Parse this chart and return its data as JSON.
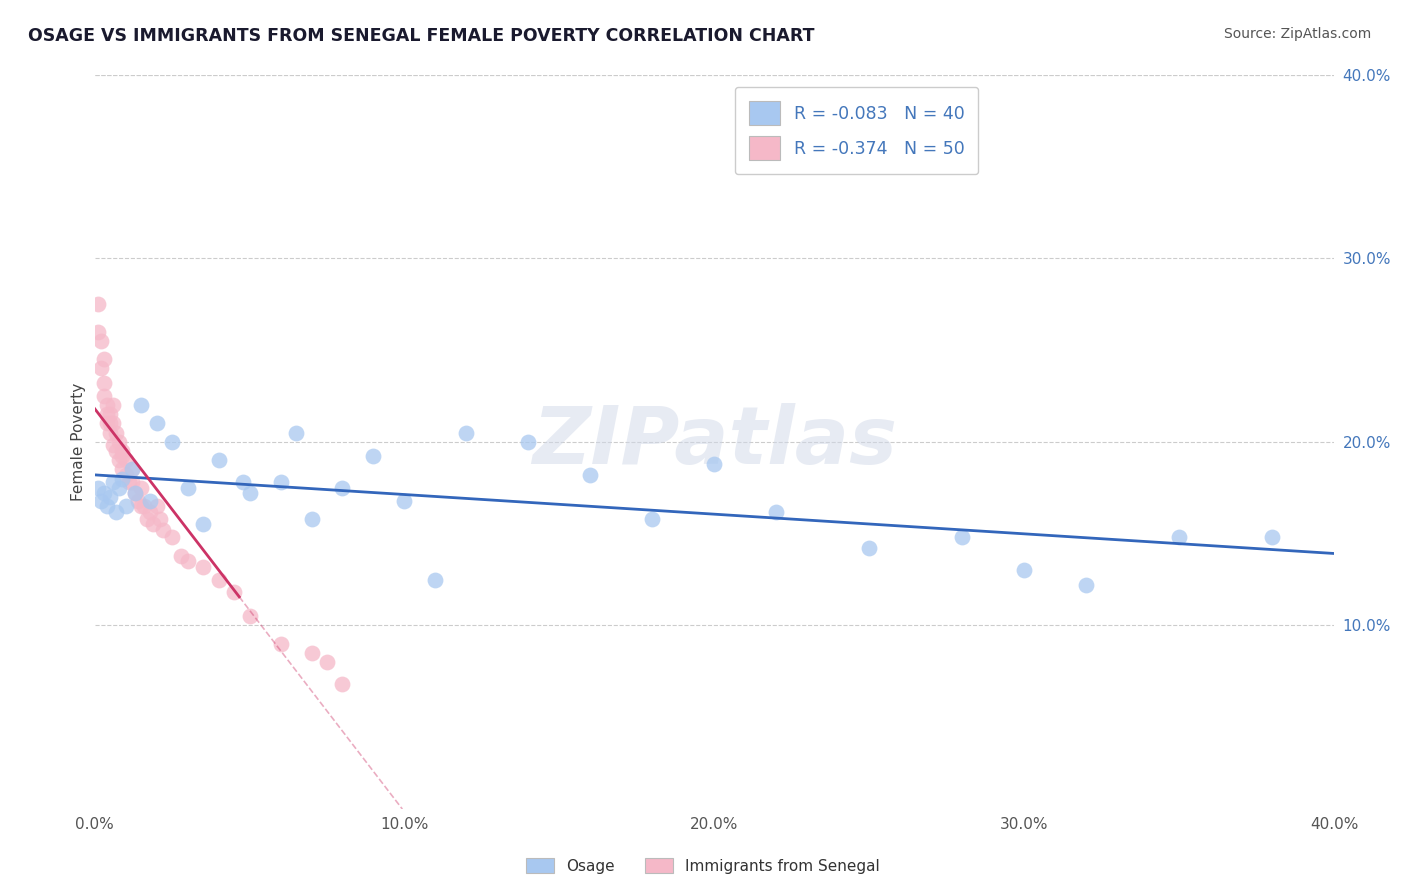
{
  "title": "OSAGE VS IMMIGRANTS FROM SENEGAL FEMALE POVERTY CORRELATION CHART",
  "source": "Source: ZipAtlas.com",
  "ylabel": "Female Poverty",
  "xlim": [
    0.0,
    0.4
  ],
  "ylim": [
    0.0,
    0.4
  ],
  "xtick_vals": [
    0.0,
    0.1,
    0.2,
    0.3,
    0.4
  ],
  "ytick_vals_right": [
    0.1,
    0.2,
    0.3,
    0.4
  ],
  "legend_labels": [
    "Osage",
    "Immigrants from Senegal"
  ],
  "osage_color": "#a8c8f0",
  "senegal_color": "#f5b8c8",
  "osage_line_color": "#3366bb",
  "senegal_line_color": "#cc3366",
  "R_osage": -0.083,
  "N_osage": 40,
  "R_senegal": -0.374,
  "N_senegal": 50,
  "watermark": "ZIPatlas",
  "title_color": "#1a1a2e",
  "legend_text_color": "#4477bb",
  "osage_x": [
    0.001,
    0.002,
    0.003,
    0.004,
    0.005,
    0.006,
    0.007,
    0.008,
    0.009,
    0.01,
    0.012,
    0.013,
    0.015,
    0.018,
    0.02,
    0.025,
    0.03,
    0.035,
    0.04,
    0.05,
    0.06,
    0.07,
    0.08,
    0.09,
    0.1,
    0.12,
    0.14,
    0.16,
    0.18,
    0.2,
    0.22,
    0.25,
    0.28,
    0.3,
    0.32,
    0.35,
    0.38,
    0.048,
    0.065,
    0.11
  ],
  "osage_y": [
    0.175,
    0.168,
    0.172,
    0.165,
    0.17,
    0.178,
    0.162,
    0.175,
    0.18,
    0.165,
    0.185,
    0.172,
    0.22,
    0.168,
    0.21,
    0.2,
    0.175,
    0.155,
    0.19,
    0.172,
    0.178,
    0.158,
    0.175,
    0.192,
    0.168,
    0.205,
    0.2,
    0.182,
    0.158,
    0.188,
    0.162,
    0.142,
    0.148,
    0.13,
    0.122,
    0.148,
    0.148,
    0.178,
    0.205,
    0.125
  ],
  "senegal_x": [
    0.001,
    0.001,
    0.002,
    0.002,
    0.003,
    0.003,
    0.004,
    0.004,
    0.004,
    0.005,
    0.005,
    0.005,
    0.006,
    0.006,
    0.007,
    0.007,
    0.008,
    0.008,
    0.009,
    0.009,
    0.01,
    0.01,
    0.011,
    0.012,
    0.012,
    0.013,
    0.014,
    0.015,
    0.015,
    0.016,
    0.017,
    0.018,
    0.019,
    0.02,
    0.021,
    0.022,
    0.025,
    0.028,
    0.03,
    0.035,
    0.04,
    0.045,
    0.05,
    0.06,
    0.07,
    0.075,
    0.08,
    0.003,
    0.006,
    0.009
  ],
  "senegal_y": [
    0.275,
    0.26,
    0.255,
    0.24,
    0.232,
    0.225,
    0.215,
    0.21,
    0.22,
    0.21,
    0.205,
    0.215,
    0.198,
    0.21,
    0.195,
    0.205,
    0.19,
    0.2,
    0.185,
    0.192,
    0.182,
    0.19,
    0.178,
    0.178,
    0.185,
    0.172,
    0.168,
    0.175,
    0.165,
    0.165,
    0.158,
    0.162,
    0.155,
    0.165,
    0.158,
    0.152,
    0.148,
    0.138,
    0.135,
    0.132,
    0.125,
    0.118,
    0.105,
    0.09,
    0.085,
    0.08,
    0.068,
    0.245,
    0.22,
    0.195
  ]
}
